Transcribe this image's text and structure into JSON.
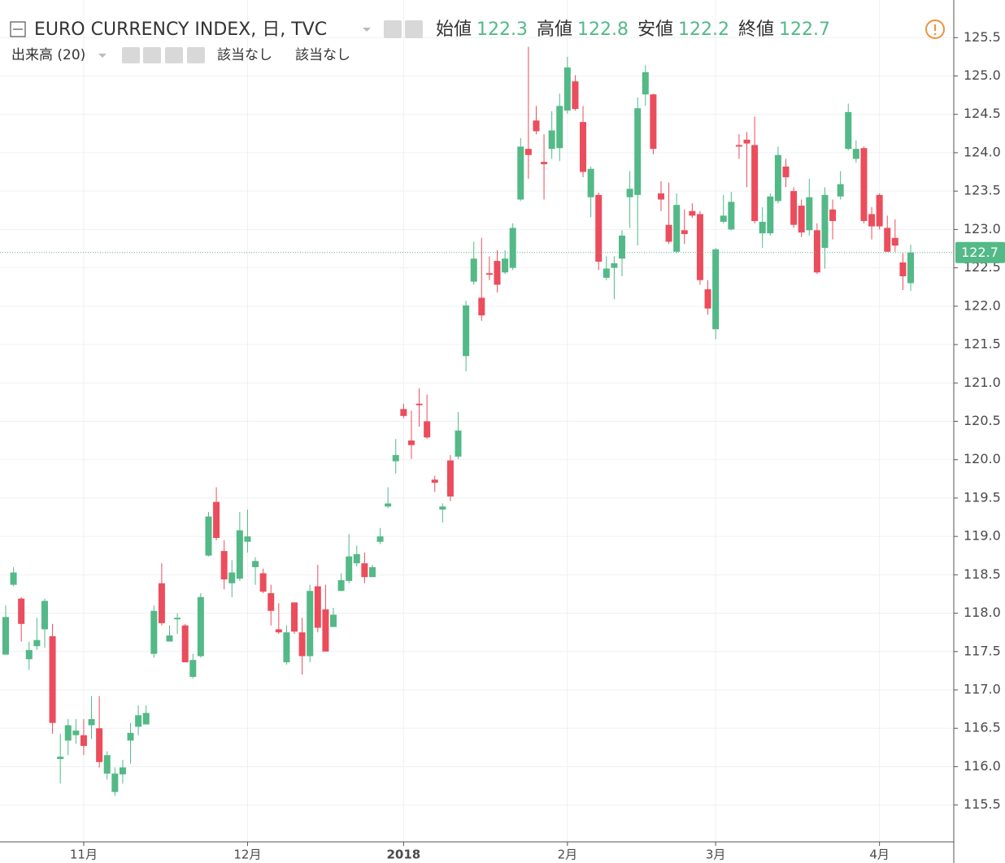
{
  "header": {
    "symbol": "EURO CURRENCY INDEX, 日, TVC",
    "ohlc": [
      {
        "label": "始値",
        "value": 122.3
      },
      {
        "label": "高値",
        "value": 122.8
      },
      {
        "label": "安値",
        "value": 122.2
      },
      {
        "label": "終値",
        "value": 122.7
      }
    ],
    "volume": {
      "label": "出来高 (20)",
      "values": [
        "該当なし",
        "該当なし"
      ]
    }
  },
  "chart_data": {
    "type": "candlestick",
    "categories": [
      null,
      null,
      null,
      null,
      null,
      null,
      null,
      null,
      null,
      null,
      "11月",
      null,
      null,
      null,
      null,
      null,
      null,
      null,
      null,
      null,
      null,
      null,
      null,
      null,
      null,
      null,
      null,
      null,
      null,
      null,
      null,
      "12月",
      null,
      null,
      null,
      null,
      null,
      null,
      null,
      null,
      null,
      null,
      null,
      null,
      null,
      null,
      null,
      null,
      null,
      null,
      null,
      "2018",
      null,
      null,
      null,
      null,
      null,
      null,
      null,
      null,
      null,
      null,
      null,
      null,
      null,
      null,
      null,
      null,
      null,
      null,
      null,
      null,
      "2月",
      null,
      null,
      null,
      null,
      null,
      null,
      null,
      null,
      null,
      null,
      null,
      null,
      null,
      null,
      null,
      null,
      null,
      null,
      "3月",
      null,
      null,
      null,
      null,
      null,
      null,
      null,
      null,
      null,
      null,
      null,
      null,
      null,
      null,
      null,
      null,
      null,
      null,
      null,
      null,
      "4月",
      null,
      null,
      null,
      null
    ],
    "open": [
      117.46,
      118.37,
      118.19,
      117.4,
      117.57,
      117.79,
      117.7,
      116.1,
      116.34,
      116.41,
      116.41,
      116.54,
      116.5,
      115.91,
      115.67,
      115.9,
      116.34,
      116.52,
      116.55,
      117.47,
      118.39,
      117.63,
      117.92,
      117.84,
      117.17,
      117.44,
      118.75,
      119.45,
      118.81,
      118.39,
      118.45,
      118.93,
      118.6,
      118.52,
      118.26,
      117.79,
      117.36,
      118.14,
      117.75,
      117.44,
      118.35,
      118.05,
      117.82,
      118.29,
      118.42,
      118.65,
      118.65,
      118.47,
      118.93,
      119.39,
      119.98,
      120.66,
      120.25,
      120.73,
      120.5,
      119.74,
      119.35,
      119.99,
      120.04,
      121.35,
      122.32,
      122.11,
      122.43,
      122.59,
      122.44,
      122.5,
      123.39,
      124.05,
      124.42,
      123.88,
      124.05,
      124.06,
      124.55,
      124.93,
      124.4,
      123.42,
      123.45,
      122.37,
      122.5,
      122.62,
      123.42,
      123.45,
      124.76,
      124.76,
      123.47,
      123.06,
      122.71,
      122.99,
      123.24,
      123.2,
      122.22,
      121.7,
      123.1,
      123.0,
      124.1,
      124.17,
      124.1,
      122.95,
      122.95,
      123.37,
      123.82,
      123.5,
      123.31,
      122.99,
      122.99,
      122.76,
      123.26,
      123.43,
      124.05,
      123.92,
      124.06,
      123.2,
      123.45,
      123.02,
      122.89,
      122.57,
      122.3
    ],
    "high": [
      118.1,
      118.6,
      118.21,
      117.63,
      117.94,
      118.19,
      117.86,
      116.43,
      116.62,
      116.62,
      116.62,
      116.92,
      116.92,
      116.2,
      115.99,
      116.09,
      116.57,
      116.8,
      116.8,
      118.1,
      118.65,
      117.84,
      118.0,
      117.86,
      117.47,
      118.26,
      119.32,
      119.64,
      118.95,
      118.69,
      119.32,
      119.35,
      118.73,
      118.58,
      118.37,
      118.13,
      117.84,
      118.14,
      117.94,
      118.37,
      118.63,
      118.37,
      118.07,
      118.52,
      119.03,
      118.88,
      118.79,
      118.63,
      119.11,
      119.64,
      120.27,
      120.73,
      120.64,
      120.93,
      120.85,
      119.79,
      119.43,
      120.06,
      120.62,
      122.07,
      122.84,
      122.89,
      122.65,
      122.73,
      122.73,
      123.08,
      124.19,
      125.38,
      124.61,
      124.24,
      124.54,
      124.77,
      125.25,
      125.01,
      124.61,
      123.82,
      123.48,
      122.65,
      122.65,
      122.99,
      123.76,
      124.72,
      125.14,
      124.77,
      123.63,
      123.61,
      123.47,
      123.26,
      123.34,
      123.24,
      122.34,
      122.76,
      123.45,
      123.49,
      124.24,
      124.27,
      124.47,
      123.29,
      123.47,
      124.08,
      123.92,
      123.55,
      123.39,
      123.66,
      123.08,
      123.55,
      123.39,
      123.76,
      124.64,
      124.16,
      124.08,
      123.29,
      123.47,
      123.18,
      123.13,
      122.69,
      122.8
    ],
    "low": [
      117.46,
      118.35,
      117.63,
      117.26,
      117.52,
      117.55,
      116.43,
      115.78,
      116.15,
      116.3,
      116.15,
      116.36,
      115.99,
      115.83,
      115.62,
      115.78,
      116.04,
      116.41,
      116.55,
      117.42,
      117.84,
      117.63,
      117.73,
      117.36,
      117.15,
      117.42,
      118.74,
      118.95,
      118.31,
      118.21,
      118.42,
      118.79,
      118.37,
      118.26,
      117.84,
      117.73,
      117.33,
      117.73,
      117.2,
      117.36,
      117.75,
      117.5,
      117.82,
      118.29,
      118.39,
      118.61,
      118.39,
      118.47,
      118.9,
      119.37,
      119.82,
      120.54,
      120.01,
      120.43,
      120.27,
      119.58,
      119.18,
      119.46,
      120.01,
      121.15,
      122.28,
      121.81,
      122.34,
      122.18,
      122.42,
      122.47,
      123.37,
      123.66,
      124.24,
      123.39,
      123.92,
      123.89,
      124.51,
      124.55,
      123.68,
      123.16,
      122.47,
      122.34,
      122.09,
      122.39,
      123.02,
      122.79,
      124.61,
      123.98,
      123.24,
      122.81,
      122.69,
      122.81,
      123.15,
      122.28,
      121.89,
      121.57,
      123.08,
      122.99,
      123.92,
      123.55,
      123.08,
      122.76,
      122.92,
      123.34,
      123.55,
      123.02,
      122.9,
      122.92,
      122.42,
      122.49,
      122.87,
      123.39,
      124.03,
      123.87,
      123.08,
      122.87,
      123.0,
      122.71,
      122.71,
      122.21,
      122.2
    ],
    "close": [
      117.95,
      118.53,
      117.86,
      117.52,
      117.65,
      118.16,
      116.57,
      116.13,
      116.54,
      116.47,
      116.27,
      116.62,
      116.06,
      116.15,
      115.91,
      115.99,
      116.44,
      116.67,
      116.7,
      118.03,
      117.87,
      117.71,
      117.94,
      117.36,
      117.39,
      118.21,
      119.26,
      118.98,
      118.44,
      118.53,
      119.08,
      119.0,
      118.68,
      118.28,
      118.03,
      117.75,
      117.75,
      117.76,
      117.44,
      118.29,
      117.81,
      117.5,
      117.98,
      118.43,
      118.74,
      118.77,
      118.47,
      118.6,
      119.0,
      119.43,
      120.06,
      120.57,
      120.19,
      120.71,
      120.29,
      119.7,
      119.39,
      119.52,
      120.38,
      122.01,
      122.62,
      121.88,
      122.41,
      122.28,
      122.62,
      123.02,
      124.08,
      123.97,
      124.28,
      123.85,
      124.29,
      124.61,
      125.11,
      124.57,
      123.75,
      123.79,
      122.58,
      122.49,
      122.56,
      122.92,
      123.53,
      124.58,
      125.05,
      124.05,
      123.39,
      122.84,
      123.32,
      122.94,
      123.18,
      122.34,
      121.97,
      122.74,
      123.18,
      123.36,
      124.08,
      124.12,
      123.11,
      123.1,
      123.43,
      123.97,
      123.68,
      123.06,
      122.96,
      123.42,
      122.44,
      123.45,
      123.11,
      123.59,
      124.53,
      124.05,
      123.11,
      123.04,
      123.04,
      122.71,
      122.79,
      122.39,
      122.7
    ],
    "up_color": "#53b987",
    "down_color": "#eb4d5c",
    "ylim": [
      115.02,
      125.99
    ],
    "yticks": [
      115.5,
      {
        "value": 116.0,
        "label": "116.0"
      },
      116.5,
      {
        "value": 117.0,
        "label": "117.0"
      },
      117.5,
      {
        "value": 118.0,
        "label": "118.0"
      },
      118.5,
      {
        "value": 119.0,
        "label": "119.0"
      },
      119.5,
      {
        "value": 120.0,
        "label": "120.0"
      },
      120.5,
      {
        "value": 121.0,
        "label": "121.0"
      },
      121.5,
      {
        "value": 122.0,
        "label": "122.0"
      },
      122.5,
      {
        "value": 123.0,
        "label": "123.0"
      },
      123.5,
      {
        "value": 124.0,
        "label": "124.0"
      },
      124.5,
      {
        "value": 125.0,
        "label": "125.0"
      },
      125.5
    ],
    "grid": true
  }
}
